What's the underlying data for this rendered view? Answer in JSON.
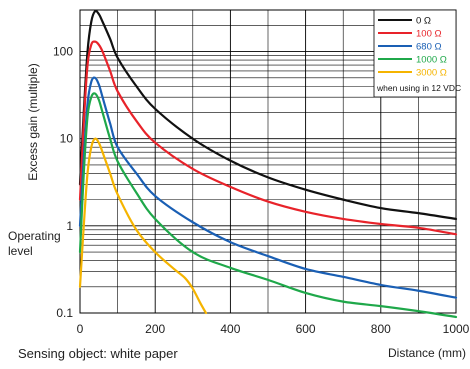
{
  "chart_data": {
    "type": "line",
    "title": "",
    "xlabel": "Distance (mm)",
    "ylabel": "Excess gain (multiple)",
    "xlim": [
      0,
      1000
    ],
    "ylim": [
      0.1,
      300
    ],
    "yscale": "log",
    "grid": true,
    "legend_position": "top-right",
    "x_ticks": [
      "0",
      "200",
      "400",
      "600",
      "800",
      "1000"
    ],
    "y_ticks": [
      {
        "value": 0.1,
        "label": "0.1"
      },
      {
        "value": 1,
        "label": "1"
      },
      {
        "value": 10,
        "label": "10"
      },
      {
        "value": 100,
        "label": "100"
      }
    ],
    "operating_level": {
      "value": 1,
      "label_line1": "Operating",
      "label_line2": "level"
    },
    "note": "when using in 12 VDC",
    "series": [
      {
        "name": "0 Ω",
        "color": "#111111",
        "x": [
          0,
          10,
          20,
          30,
          40,
          50,
          60,
          80,
          100,
          150,
          200,
          300,
          400,
          500,
          600,
          700,
          800,
          900,
          1000
        ],
        "y": [
          3,
          20,
          100,
          220,
          290,
          270,
          220,
          140,
          85,
          40,
          22,
          10,
          5.6,
          3.6,
          2.6,
          2.0,
          1.6,
          1.4,
          1.2
        ]
      },
      {
        "name": "100 Ω",
        "color": "#e8232a",
        "x": [
          0,
          10,
          20,
          30,
          40,
          50,
          60,
          80,
          100,
          150,
          200,
          300,
          400,
          500,
          600,
          700,
          800,
          900,
          1000
        ],
        "y": [
          2,
          15,
          70,
          120,
          130,
          120,
          100,
          60,
          35,
          16,
          9,
          4.5,
          2.8,
          1.9,
          1.45,
          1.2,
          1.05,
          0.95,
          0.8
        ]
      },
      {
        "name": "680 Ω",
        "color": "#1a5fb4",
        "x": [
          0,
          10,
          20,
          30,
          40,
          50,
          60,
          80,
          100,
          150,
          200,
          300,
          400,
          500,
          600,
          700,
          800,
          900,
          1000
        ],
        "y": [
          1,
          6,
          25,
          45,
          50,
          42,
          30,
          15,
          8,
          4,
          2.2,
          1.1,
          0.65,
          0.45,
          0.32,
          0.26,
          0.21,
          0.18,
          0.15
        ]
      },
      {
        "name": "1000 Ω",
        "color": "#1fa84a",
        "x": [
          0,
          10,
          20,
          30,
          40,
          50,
          60,
          80,
          100,
          150,
          200,
          300,
          400,
          500,
          600,
          700,
          800,
          900,
          1000
        ],
        "y": [
          0.5,
          4,
          18,
          30,
          33,
          28,
          20,
          10,
          5.5,
          2.4,
          1.2,
          0.5,
          0.33,
          0.24,
          0.17,
          0.135,
          0.12,
          0.105,
          0.09
        ]
      },
      {
        "name": "3000 Ω",
        "color": "#f5b400",
        "x": [
          0,
          10,
          20,
          30,
          40,
          50,
          60,
          80,
          100,
          150,
          200,
          250,
          280,
          300,
          320,
          335
        ],
        "y": [
          0.2,
          1,
          4,
          8,
          10,
          9,
          7,
          4,
          2.3,
          0.9,
          0.5,
          0.32,
          0.25,
          0.19,
          0.13,
          0.1
        ]
      }
    ]
  },
  "caption": "Sensing object: white paper"
}
